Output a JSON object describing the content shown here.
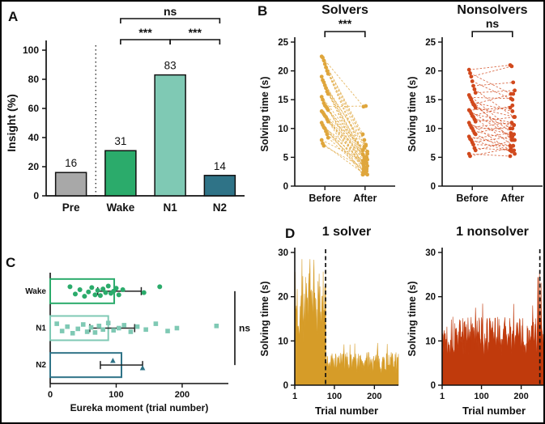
{
  "figure": {
    "bg": "#ffffff",
    "border_color": "#000000",
    "panel_labels": {
      "A": "A",
      "B": "B",
      "C": "C",
      "D": "D"
    }
  },
  "chart_data": [
    {
      "id": "insight",
      "panel": "A",
      "type": "bar",
      "ylabel": "Insight (%)",
      "ylim": [
        0,
        100
      ],
      "yticks": [
        0,
        20,
        40,
        60,
        80,
        100
      ],
      "categories": [
        "Pre",
        "Wake",
        "N1",
        "N2"
      ],
      "values": [
        16,
        31,
        83,
        14
      ],
      "bar_colors": [
        "#a8a8a8",
        "#2bab6b",
        "#7fc9b4",
        "#2f7387"
      ],
      "bar_edge": "#111111",
      "separator_after_index": 0,
      "brackets": [
        {
          "from": 1,
          "to": 2,
          "label": "***",
          "level": 0
        },
        {
          "from": 2,
          "to": 3,
          "label": "***",
          "level": 0
        },
        {
          "from": 1,
          "to": 3,
          "label": "ns",
          "level": 1
        }
      ]
    },
    {
      "id": "solvers",
      "panel": "B",
      "type": "paired",
      "title": "Solvers",
      "ylabel": "Solving time (s)",
      "ylim": [
        0,
        25
      ],
      "yticks": [
        0,
        5,
        10,
        15,
        20,
        25
      ],
      "xlabels": [
        "Before",
        "After"
      ],
      "color": "#dfa63c",
      "sig_label": "***",
      "pairs": [
        [
          22.5,
          9
        ],
        [
          22.3,
          13.8
        ],
        [
          21.8,
          8
        ],
        [
          21.2,
          5
        ],
        [
          20.6,
          7.2
        ],
        [
          20,
          4
        ],
        [
          19.5,
          6
        ],
        [
          19,
          5.5
        ],
        [
          18.4,
          3
        ],
        [
          18,
          6.8
        ],
        [
          17.5,
          4.5
        ],
        [
          17,
          7
        ],
        [
          16.4,
          5
        ],
        [
          16,
          3.5
        ],
        [
          15.5,
          6.2
        ],
        [
          15,
          2.5
        ],
        [
          14.4,
          5
        ],
        [
          14,
          4
        ],
        [
          13.8,
          13.9
        ],
        [
          13.5,
          3
        ],
        [
          13.2,
          5.6
        ],
        [
          13,
          2
        ],
        [
          12.8,
          4
        ],
        [
          12.5,
          6.6
        ],
        [
          12.2,
          3.2
        ],
        [
          12,
          5
        ],
        [
          11.6,
          2.6
        ],
        [
          11.2,
          4.6
        ],
        [
          11,
          2
        ],
        [
          10.6,
          3.6
        ],
        [
          10.2,
          5
        ],
        [
          10,
          2.2
        ],
        [
          9.5,
          4
        ],
        [
          9,
          3
        ],
        [
          8.4,
          2
        ],
        [
          8,
          4.4
        ],
        [
          7.4,
          2.2
        ],
        [
          7,
          3.1
        ]
      ]
    },
    {
      "id": "nonsolvers",
      "panel": "B",
      "type": "paired",
      "title": "Nonsolvers",
      "ylabel": "Solving time (s)",
      "ylim": [
        0,
        25
      ],
      "yticks": [
        0,
        5,
        10,
        15,
        20,
        25
      ],
      "xlabels": [
        "Before",
        "After"
      ],
      "color": "#d1491d",
      "sig_label": "ns",
      "pairs": [
        [
          20.2,
          21
        ],
        [
          19.6,
          16
        ],
        [
          19,
          20.8
        ],
        [
          18.2,
          15
        ],
        [
          17.4,
          18
        ],
        [
          16.8,
          12
        ],
        [
          16.2,
          16.6
        ],
        [
          15.8,
          10
        ],
        [
          15.4,
          15.2
        ],
        [
          15,
          8
        ],
        [
          14.6,
          13
        ],
        [
          14.2,
          16
        ],
        [
          14,
          9
        ],
        [
          13.6,
          12
        ],
        [
          13.2,
          13.6
        ],
        [
          13,
          8.6
        ],
        [
          12.6,
          11
        ],
        [
          12.2,
          14
        ],
        [
          12,
          7
        ],
        [
          11.6,
          10.6
        ],
        [
          11.2,
          12
        ],
        [
          11,
          6.2
        ],
        [
          10.6,
          9
        ],
        [
          10.2,
          11
        ],
        [
          10,
          10
        ],
        [
          9.6,
          8
        ],
        [
          9.2,
          10.6
        ],
        [
          9,
          5.6
        ],
        [
          8.6,
          7
        ],
        [
          8.2,
          9.2
        ],
        [
          8,
          6
        ],
        [
          7.6,
          8.6
        ],
        [
          7.2,
          7
        ],
        [
          6.6,
          6.2
        ],
        [
          6.2,
          8
        ],
        [
          5.6,
          5.2
        ],
        [
          5.2,
          6.6
        ]
      ]
    },
    {
      "id": "eureka",
      "panel": "C",
      "type": "hbar_scatter",
      "xlabel": "Eureka moment (trial number)",
      "xlim": [
        0,
        270
      ],
      "xticks": [
        0,
        100,
        200
      ],
      "sig_label": "ns",
      "rows": [
        {
          "label": "Wake",
          "mean": 97,
          "err_lo": 72,
          "err_hi": 138,
          "color": "#2bab6b",
          "marker": "circle",
          "points": [
            30,
            38,
            45,
            52,
            58,
            63,
            68,
            72,
            76,
            80,
            84,
            88,
            92,
            96,
            100,
            104,
            110,
            142,
            166
          ]
        },
        {
          "label": "N1",
          "mean": 88,
          "err_lo": 60,
          "err_hi": 128,
          "color": "#7fc9b4",
          "marker": "square",
          "points": [
            10,
            18,
            26,
            34,
            42,
            50,
            56,
            62,
            68,
            74,
            80,
            88,
            96,
            104,
            112,
            122,
            132,
            145,
            160,
            178,
            192,
            252
          ]
        },
        {
          "label": "N2",
          "mean": 108,
          "err_lo": 76,
          "err_hi": 140,
          "color": "#2f7387",
          "marker": "triangle",
          "points": [
            95,
            140
          ]
        }
      ]
    },
    {
      "id": "solver_series",
      "panel": "D",
      "type": "series",
      "title": "1 solver",
      "ylabel": "Solving time (s)",
      "xlabel": "Trial number",
      "ylim": [
        0,
        30
      ],
      "yticks": [
        0,
        10,
        20,
        30
      ],
      "xticks": [
        1,
        100,
        200
      ],
      "n_trials": 260,
      "dashed_x": 78,
      "color": "#d69c28",
      "seed": 7,
      "segments": [
        {
          "until": 78,
          "base": 8,
          "amp": 18
        },
        {
          "until": 260,
          "base": 2.5,
          "amp": 5
        }
      ]
    },
    {
      "id": "nonsolver_series",
      "panel": "D",
      "type": "series",
      "title": "1 nonsolver",
      "ylabel": "Solving time (s)",
      "xlabel": "Trial number",
      "ylim": [
        0,
        30
      ],
      "yticks": [
        0,
        10,
        20,
        30
      ],
      "xticks": [
        1,
        100,
        200
      ],
      "n_trials": 262,
      "dashed_x": 247,
      "color": "#c03a0c",
      "seed": 13,
      "segments": [
        {
          "until": 240,
          "base": 6.5,
          "amp": 9
        },
        {
          "until": 252,
          "base": 9,
          "amp": 17
        },
        {
          "until": 262,
          "base": 6,
          "amp": 7
        }
      ]
    }
  ]
}
